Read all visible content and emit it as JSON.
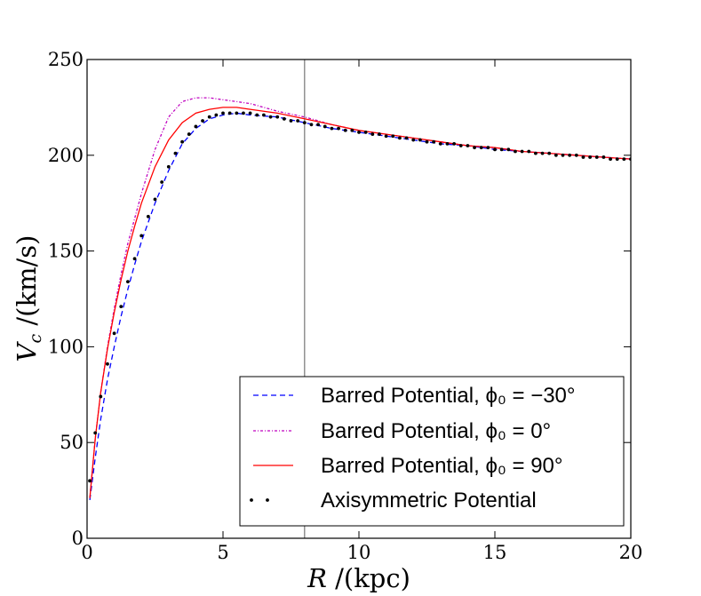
{
  "chart_data": {
    "type": "line",
    "title": "",
    "xlabel": "R /(kpc)",
    "ylabel": "V_c /(km/s)",
    "xlim": [
      0,
      20
    ],
    "ylim": [
      0,
      250
    ],
    "x_ticks": [
      "0",
      "5",
      "10",
      "15",
      "20"
    ],
    "y_ticks": [
      "0",
      "50",
      "100",
      "150",
      "200",
      "250"
    ],
    "vertical_line_x": 8,
    "legend_position": "lower-right",
    "series": [
      {
        "name": "Barred Potential, ϕ₀ = −30°",
        "style": "dashed",
        "color": "#0000ff",
        "x": [
          0.1,
          0.3,
          0.5,
          0.75,
          1.0,
          1.25,
          1.5,
          1.75,
          2.0,
          2.5,
          3.0,
          3.5,
          4.0,
          4.5,
          5.0,
          5.5,
          6.0,
          7.0,
          8.0,
          9.0,
          10.0,
          11.0,
          12.0,
          13.0,
          14.0,
          15.0,
          16.0,
          17.0,
          18.0,
          19.0,
          20.0
        ],
        "y": [
          20,
          42,
          62,
          83,
          100,
          116,
          130,
          143,
          155,
          175,
          192,
          206,
          214,
          219,
          221,
          222,
          221,
          220,
          217,
          214,
          212,
          210,
          208,
          206,
          205,
          203,
          202,
          201,
          200,
          199,
          198
        ]
      },
      {
        "name": "Barred Potential, ϕ₀ = 0°",
        "style": "dashdot",
        "color": "#bf00bf",
        "x": [
          0.1,
          0.3,
          0.5,
          0.75,
          1.0,
          1.25,
          1.5,
          1.75,
          2.0,
          2.5,
          3.0,
          3.5,
          4.0,
          4.5,
          5.0,
          5.5,
          6.0,
          7.0,
          8.0,
          9.0,
          10.0,
          11.0,
          12.0,
          13.0,
          14.0,
          15.0,
          16.0,
          17.0,
          18.0,
          19.0,
          20.0
        ],
        "y": [
          21,
          52,
          76,
          100,
          120,
          138,
          154,
          167,
          180,
          203,
          220,
          228,
          230,
          230,
          229,
          228,
          227,
          223,
          220,
          216,
          213,
          211,
          209,
          207,
          205,
          204,
          202,
          201,
          200,
          199,
          198
        ]
      },
      {
        "name": "Barred Potential, ϕ₀ = 90°",
        "style": "solid",
        "color": "#ff0000",
        "x": [
          0.1,
          0.3,
          0.5,
          0.75,
          1.0,
          1.25,
          1.5,
          1.75,
          2.0,
          2.5,
          3.0,
          3.5,
          4.0,
          4.5,
          5.0,
          5.5,
          6.0,
          7.0,
          8.0,
          9.0,
          10.0,
          11.0,
          12.0,
          13.0,
          14.0,
          15.0,
          16.0,
          17.0,
          18.0,
          19.0,
          20.0
        ],
        "y": [
          21,
          52,
          76,
          99,
          118,
          135,
          150,
          163,
          175,
          194,
          208,
          217,
          222,
          224,
          225,
          225,
          224,
          222,
          219,
          216,
          213,
          211,
          209,
          207,
          205,
          204,
          202,
          201,
          200,
          199,
          198
        ]
      },
      {
        "name": "Axisymmetric Potential",
        "style": "dotted",
        "color": "#000000",
        "x": [
          0.1,
          0.3,
          0.5,
          0.75,
          1.0,
          1.25,
          1.5,
          1.75,
          2.0,
          2.25,
          2.5,
          2.75,
          3.0,
          3.25,
          3.5,
          3.75,
          4.0,
          4.25,
          4.5,
          4.75,
          5.0,
          5.25,
          5.5,
          5.75,
          6.0,
          6.25,
          6.5,
          6.75,
          7.0,
          7.25,
          7.5,
          7.75,
          8.0,
          8.25,
          8.5,
          8.75,
          9.0,
          9.25,
          9.5,
          9.75,
          10.0,
          10.25,
          10.5,
          10.75,
          11.0,
          11.25,
          11.5,
          11.75,
          12.0,
          12.25,
          12.5,
          12.75,
          13.0,
          13.25,
          13.5,
          13.75,
          14.0,
          14.25,
          14.5,
          14.75,
          15.0,
          15.25,
          15.5,
          15.75,
          16.0,
          16.25,
          16.5,
          16.75,
          17.0,
          17.25,
          17.5,
          17.75,
          18.0,
          18.25,
          18.5,
          18.75,
          19.0,
          19.25,
          19.5,
          19.75,
          20.0
        ],
        "y": [
          30,
          55,
          74,
          91,
          107,
          121,
          134,
          146,
          158,
          168,
          177,
          186,
          194,
          201,
          207,
          211,
          215,
          218,
          220,
          221,
          222,
          222,
          222,
          222,
          222,
          221,
          221,
          220,
          220,
          219,
          218,
          218,
          217,
          216,
          216,
          215,
          214,
          214,
          213,
          213,
          212,
          212,
          211,
          211,
          210,
          210,
          209,
          209,
          208,
          208,
          207,
          207,
          206,
          206,
          206,
          205,
          205,
          204,
          204,
          204,
          203,
          203,
          203,
          202,
          202,
          202,
          201,
          201,
          201,
          200,
          200,
          200,
          200,
          199,
          199,
          199,
          199,
          198,
          198,
          198,
          198
        ]
      }
    ]
  }
}
